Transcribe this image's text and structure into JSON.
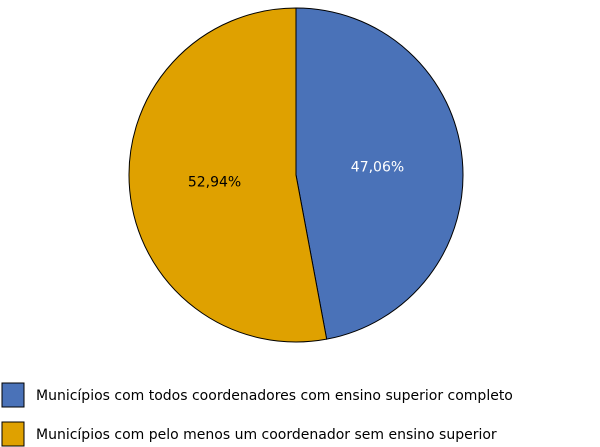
{
  "chart_data": {
    "type": "pie",
    "categories": [
      "Municípios com todos coordenadores com ensino superior completo",
      "Municípios com pelo menos um coordenador sem ensino superior"
    ],
    "values": [
      47.06,
      52.94
    ],
    "value_labels": [
      "47,06%",
      "52,94%"
    ],
    "colors": [
      "#4a72b8",
      "#dfa100"
    ],
    "legend": "bottom"
  }
}
